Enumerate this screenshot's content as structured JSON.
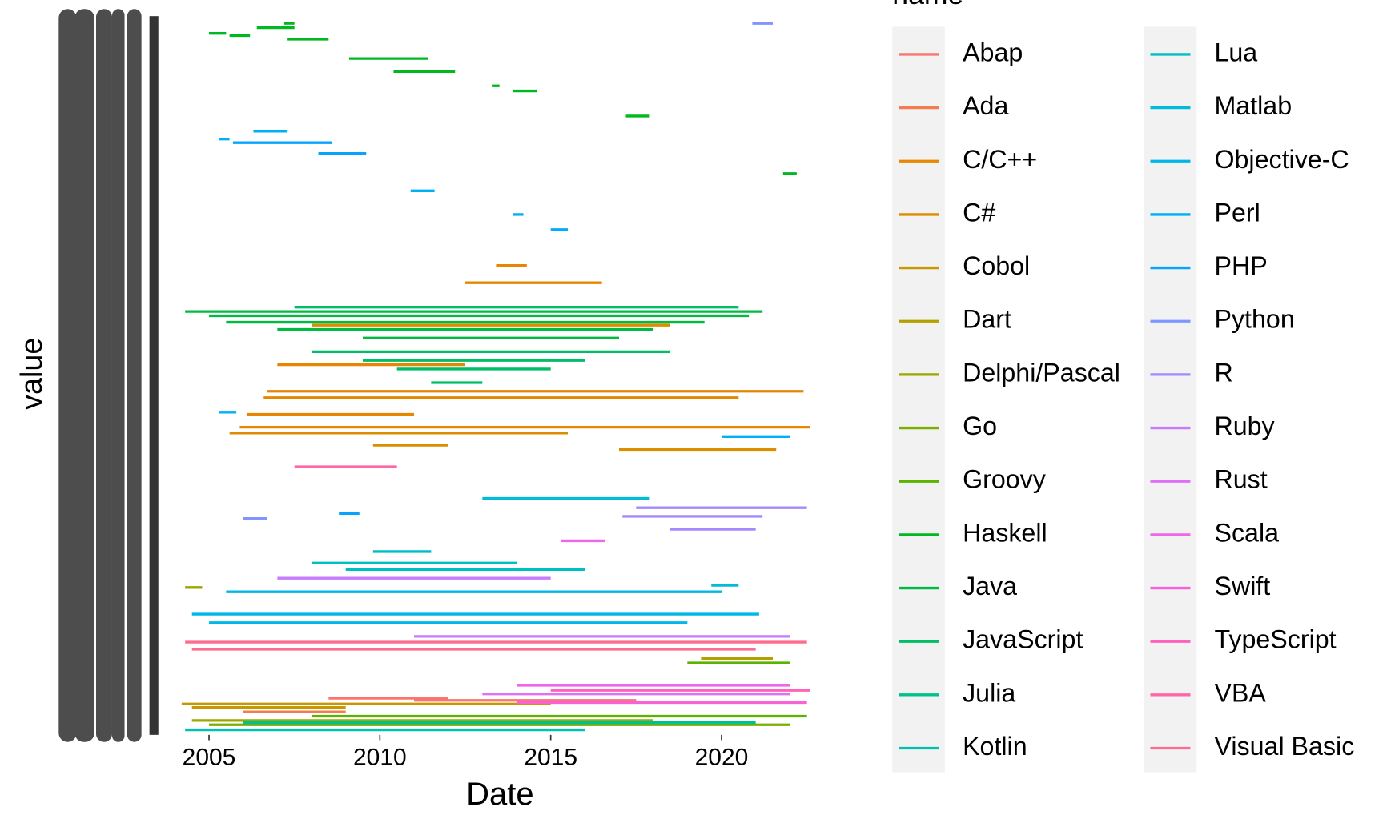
{
  "chart_data": {
    "type": "segment",
    "x_label": "Date",
    "y_label": "value",
    "legend_title": "name",
    "xlim": [
      2004.22,
      2022.63
    ],
    "xticks": [
      2005,
      2010,
      2015,
      2020
    ],
    "ylim": [
      0,
      100
    ],
    "series": [
      {
        "name": "Abap",
        "color": "#F8766D",
        "start": [
          2008.5,
          2011.0
        ],
        "end": [
          2012.0,
          2017.5
        ],
        "values": [
          5.1,
          4.8
        ]
      },
      {
        "name": "Ada",
        "color": "#F27D52",
        "start": [
          2006.0
        ],
        "end": [
          2009.0
        ],
        "values": [
          3.2
        ]
      },
      {
        "name": "C/C++",
        "color": "#E58700",
        "start": [
          2012.5,
          2013.4,
          2006.7,
          2006.6,
          2006.1,
          2005.9,
          2007.0
        ],
        "end": [
          2016.5,
          2014.3,
          2022.4,
          2020.5,
          2011.0,
          2022.6,
          2012.5
        ],
        "values": [
          62.9,
          65.3,
          47.8,
          46.9,
          44.6,
          42.8,
          51.5
        ]
      },
      {
        "name": "C#",
        "color": "#DB8E00",
        "start": [
          2005.6,
          2009.8,
          2017.0,
          2008.0
        ],
        "end": [
          2015.5,
          2012.0,
          2021.6,
          2018.5
        ],
        "values": [
          42.0,
          40.3,
          39.7,
          57.0
        ]
      },
      {
        "name": "Cobol",
        "color": "#C99800",
        "start": [
          2004.5,
          2004.2
        ],
        "end": [
          2009.0,
          2015.0
        ],
        "values": [
          3.8,
          4.3
        ]
      },
      {
        "name": "Dart",
        "color": "#B3A000",
        "start": [
          2019.4
        ],
        "end": [
          2021.5
        ],
        "values": [
          10.6
        ]
      },
      {
        "name": "Delphi/Pascal",
        "color": "#9CA700",
        "start": [
          2004.3,
          2004.5
        ],
        "end": [
          2004.8,
          2018.0
        ],
        "values": [
          20.5,
          2.0
        ]
      },
      {
        "name": "Go",
        "color": "#7CAE00",
        "start": [
          2005.0
        ],
        "end": [
          2022.0
        ],
        "values": [
          1.4
        ]
      },
      {
        "name": "Groovy",
        "color": "#5BB300",
        "start": [
          2008.0,
          2019.0
        ],
        "end": [
          2022.5,
          2022.0
        ],
        "values": [
          2.6,
          10.0
        ]
      },
      {
        "name": "Haskell",
        "color": "#00B81F",
        "start": [
          2005.0,
          2005.6,
          2006.4,
          2007.2,
          2007.3,
          2009.1,
          2010.4,
          2013.3,
          2013.9,
          2017.2,
          2021.8
        ],
        "end": [
          2005.5,
          2006.2,
          2007.5,
          2007.5,
          2008.5,
          2011.4,
          2012.2,
          2013.5,
          2014.6,
          2017.9,
          2022.2
        ],
        "values": [
          97.6,
          97.3,
          98.4,
          99.0,
          96.8,
          94.1,
          92.3,
          90.3,
          89.6,
          86.1,
          78.1
        ]
      },
      {
        "name": "Java",
        "color": "#00BA42",
        "start": [
          2004.3,
          2005.0,
          2005.5,
          2007.0,
          2009.5
        ],
        "end": [
          2021.2,
          2020.8,
          2019.5,
          2018.0,
          2017.0
        ],
        "values": [
          58.9,
          58.3,
          57.4,
          56.4,
          55.2
        ]
      },
      {
        "name": "JavaScript",
        "color": "#00BE67",
        "start": [
          2007.5,
          2008.0,
          2009.5,
          2010.5,
          2011.5
        ],
        "end": [
          2020.5,
          2018.5,
          2016.0,
          2015.0,
          2013.0
        ],
        "values": [
          59.5,
          53.3,
          52.1,
          50.9,
          49.0
        ]
      },
      {
        "name": "Julia",
        "color": "#00C08B",
        "start": [
          2006.0
        ],
        "end": [
          2021.0
        ],
        "values": [
          1.7
        ]
      },
      {
        "name": "Kotlin",
        "color": "#00C0AF",
        "start": [
          2004.3
        ],
        "end": [
          2016.0
        ],
        "values": [
          0.7
        ]
      },
      {
        "name": "Lua",
        "color": "#00BFC4",
        "start": [
          2009.8,
          2008.0,
          2009.0
        ],
        "end": [
          2011.5,
          2014.0,
          2016.0
        ],
        "values": [
          25.5,
          23.9,
          23.0
        ]
      },
      {
        "name": "Matlab",
        "color": "#00BCD8",
        "start": [
          2013.0,
          2019.7
        ],
        "end": [
          2017.9,
          2020.5
        ],
        "values": [
          32.9,
          20.8
        ]
      },
      {
        "name": "Objective-C",
        "color": "#00B8E7",
        "start": [
          2005.5,
          2004.5,
          2005.0
        ],
        "end": [
          2020.0,
          2021.1,
          2019.0
        ],
        "values": [
          19.9,
          16.8,
          15.6
        ]
      },
      {
        "name": "Perl",
        "color": "#00B0F6",
        "start": [
          2005.3,
          2006.3,
          2010.9,
          2013.9,
          2015.0,
          2005.3,
          2020.0
        ],
        "end": [
          2005.6,
          2007.3,
          2011.6,
          2014.2,
          2015.5,
          2005.8,
          2022.0
        ],
        "values": [
          82.9,
          84.0,
          75.7,
          72.4,
          70.3,
          44.9,
          41.5
        ]
      },
      {
        "name": "PHP",
        "color": "#06A4FF",
        "start": [
          2005.7,
          2008.2,
          2008.8
        ],
        "end": [
          2008.6,
          2009.6,
          2009.4
        ],
        "values": [
          82.4,
          80.9,
          30.8
        ]
      },
      {
        "name": "Python",
        "color": "#7F96FF",
        "start": [
          2020.9,
          2006.0
        ],
        "end": [
          2021.5,
          2006.7
        ],
        "values": [
          99.0,
          30.1
        ]
      },
      {
        "name": "R",
        "color": "#A58AFF",
        "start": [
          2017.5,
          2017.1,
          2018.5
        ],
        "end": [
          2022.5,
          2021.2,
          2021.0
        ],
        "values": [
          31.6,
          30.4,
          28.6
        ]
      },
      {
        "name": "Ruby",
        "color": "#C77CFF",
        "start": [
          2007.0,
          2011.0
        ],
        "end": [
          2015.0,
          2022.0
        ],
        "values": [
          21.8,
          13.7
        ]
      },
      {
        "name": "Rust",
        "color": "#DF70F8",
        "start": [
          2013.0
        ],
        "end": [
          2022.0
        ],
        "values": [
          5.7
        ]
      },
      {
        "name": "Scala",
        "color": "#F066EA",
        "start": [
          2015.3,
          2014.0
        ],
        "end": [
          2016.6,
          2022.0
        ],
        "values": [
          27.0,
          6.9
        ]
      },
      {
        "name": "Swift",
        "color": "#FB61D7",
        "start": [
          2014.0
        ],
        "end": [
          2022.5
        ],
        "values": [
          4.5
        ]
      },
      {
        "name": "TypeScript",
        "color": "#FF62BC",
        "start": [
          2015.0
        ],
        "end": [
          2022.6
        ],
        "values": [
          6.2
        ]
      },
      {
        "name": "VBA",
        "color": "#FF66A8",
        "start": [
          2007.5
        ],
        "end": [
          2010.5
        ],
        "values": [
          37.3
        ]
      },
      {
        "name": "Visual Basic",
        "color": "#FF6C91",
        "start": [
          2004.3,
          2004.5
        ],
        "end": [
          2022.5,
          2021.0
        ],
        "values": [
          12.9,
          11.9
        ]
      }
    ]
  }
}
